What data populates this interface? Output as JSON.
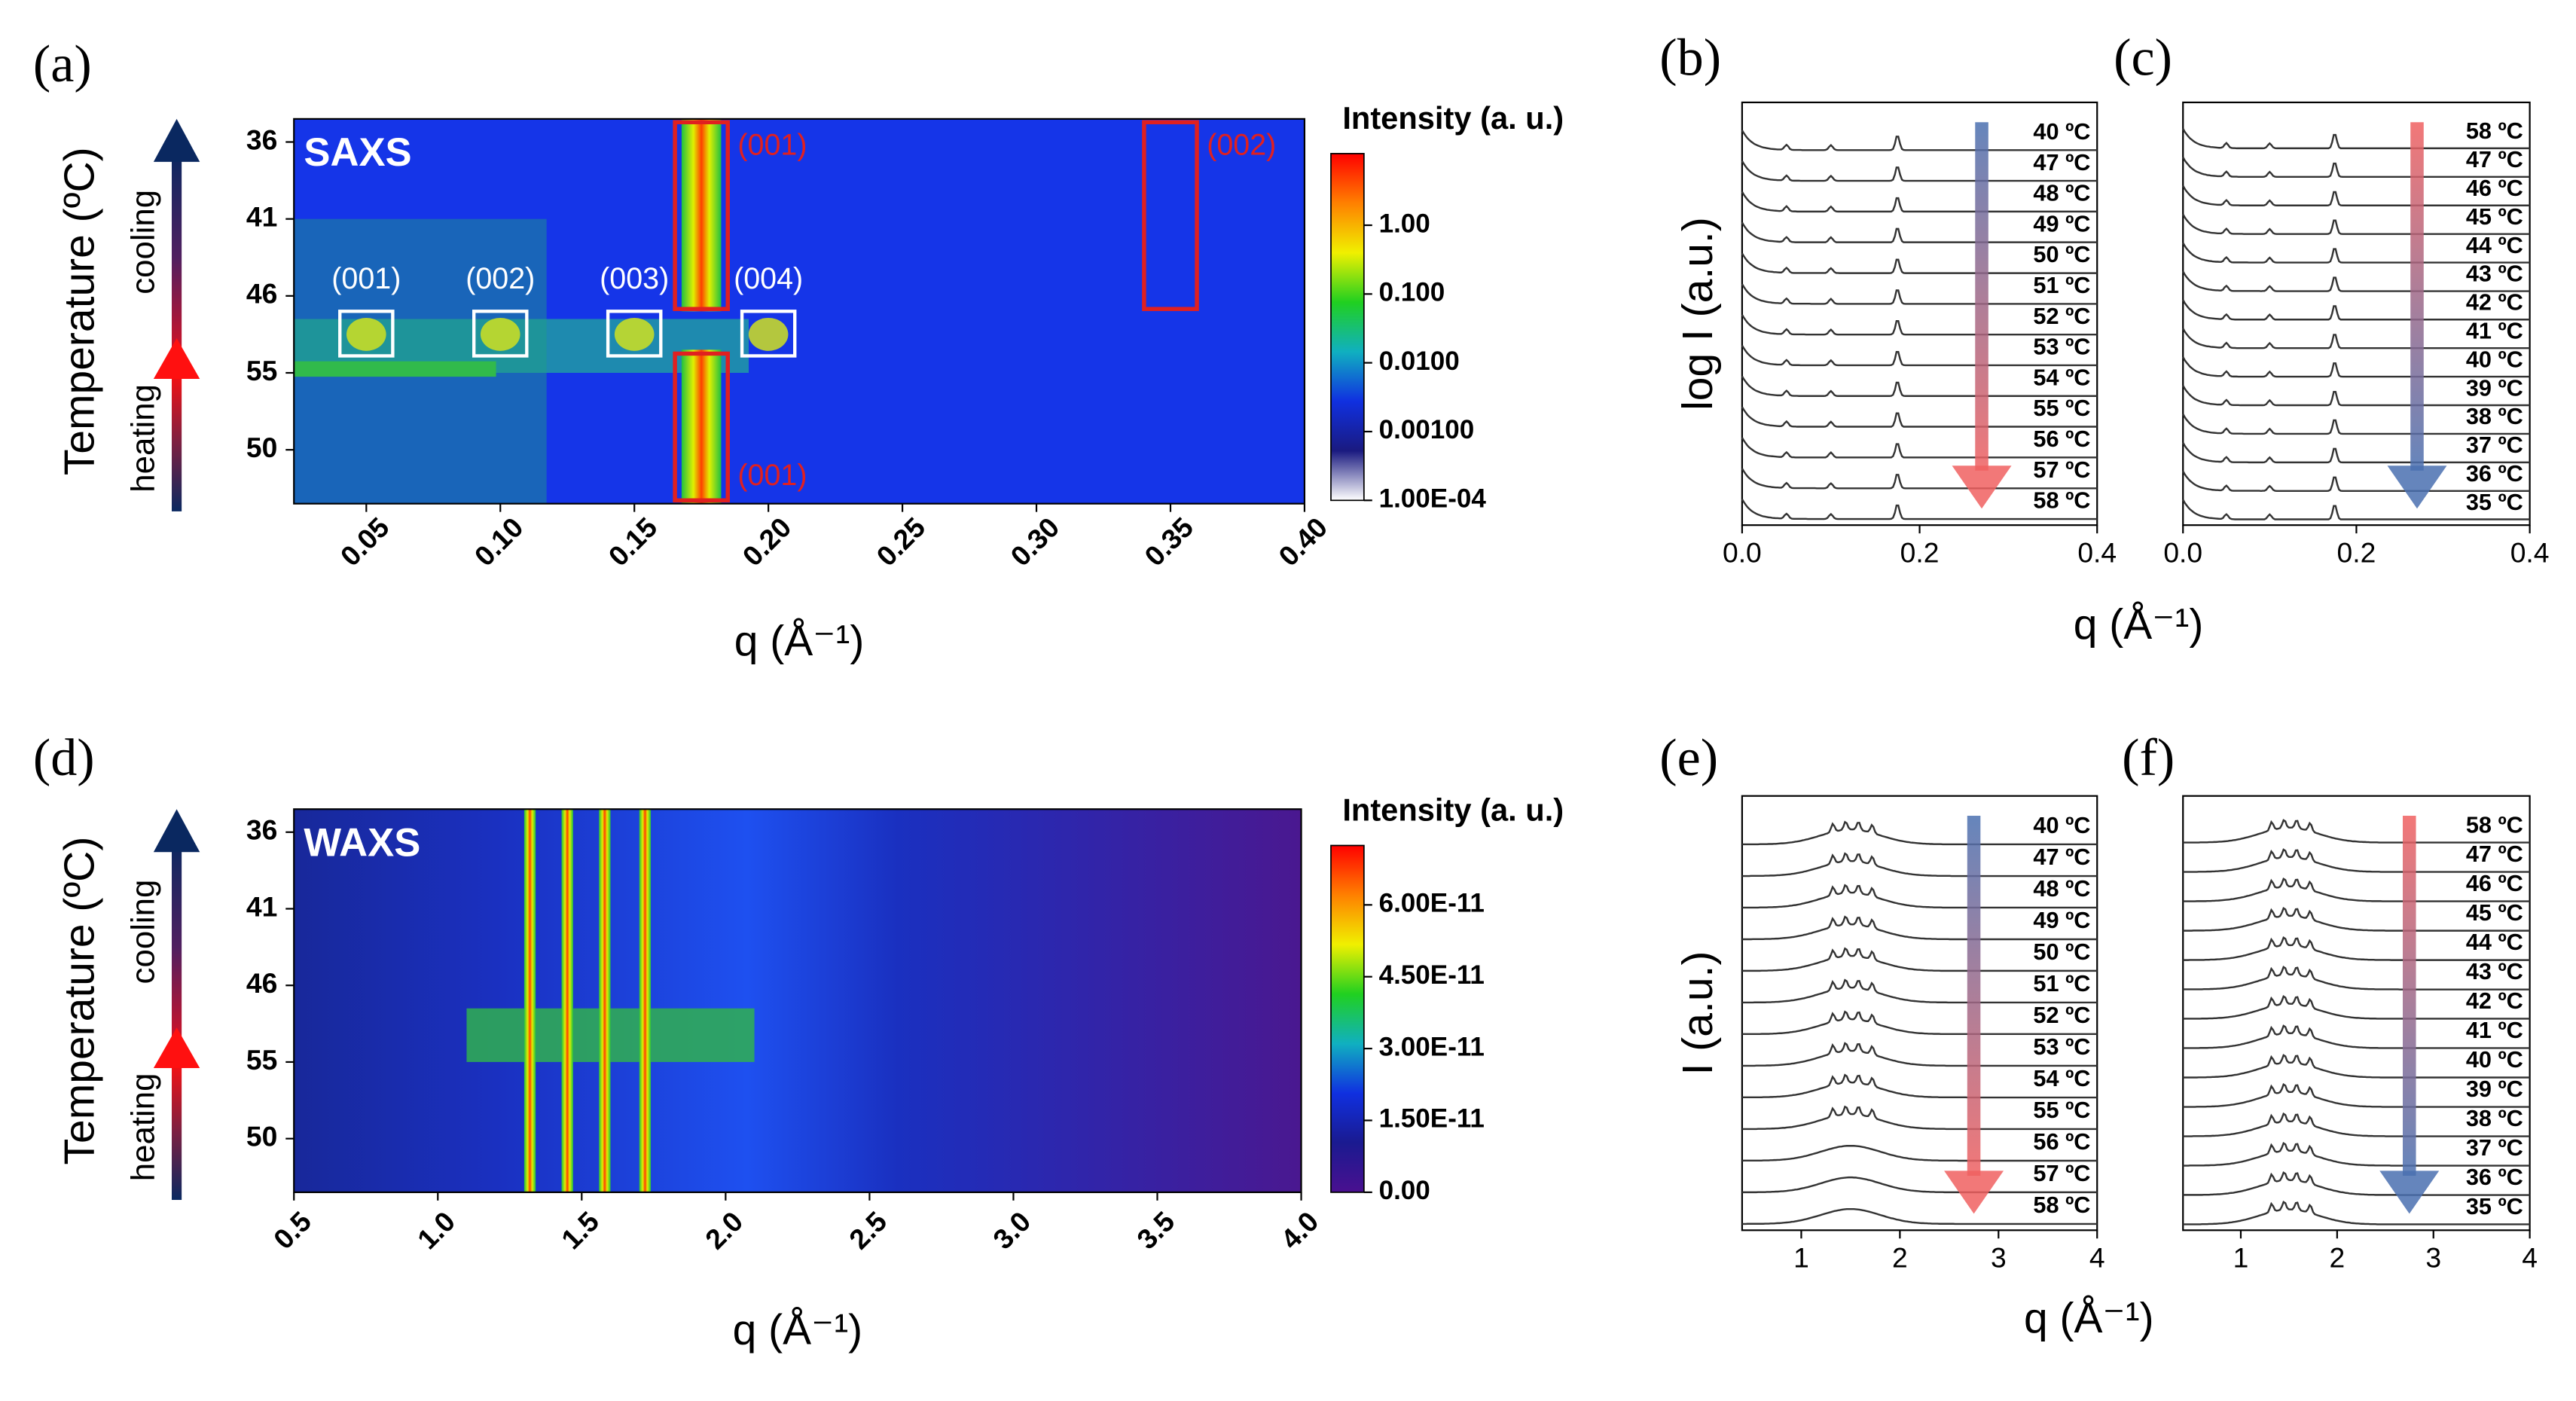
{
  "chart_data": [
    {
      "type": "heatmap",
      "panel": "(a)",
      "label": "SAXS",
      "xlabel": "q (Å⁻¹)",
      "ylabel": "Temperature (ºC)",
      "categories": [
        "36",
        "41",
        "46",
        "55",
        "50"
      ],
      "arrows": [
        "cooling",
        "heating"
      ],
      "xlim": [
        0.023,
        0.4
      ],
      "xticks": [
        0.05,
        {
          "value": 0.1,
          "label": "0.10"
        },
        0.15,
        {
          "value": 0.2,
          "label": "0.20"
        },
        0.25,
        {
          "value": 0.3,
          "label": "0.30"
        },
        0.35,
        {
          "value": 0.4,
          "label": "0.40"
        }
      ],
      "peaks": [
        0.175
      ],
      "colorbar": {
        "title": "Intensity (a. u.)",
        "log": true,
        "lim": [
          0.0001,
          11
        ],
        "colors": [
          "#ffffff",
          "#1a1a80",
          "#1030e0",
          "#10b0c0",
          "#20d020",
          "#f0f000",
          "#ff8000",
          "#ff0000"
        ],
        "ticks": [
          {
            "value": 1,
            "label": "1.00"
          },
          {
            "value": 0.1,
            "label": "0.100"
          },
          {
            "value": 0.01,
            "label": "0.0100"
          },
          {
            "value": 0.001,
            "label": "0.00100"
          },
          {
            "value": 0.0001,
            "label": "1.00E-04"
          }
        ]
      },
      "annotations": [
        {
          "text": "(001)",
          "x": 0.05,
          "color": "#ffffff",
          "box": "small"
        },
        {
          "text": "(002)",
          "x": 0.1,
          "color": "#ffffff",
          "box": "small"
        },
        {
          "text": "(003)",
          "x": 0.15,
          "color": "#ffffff",
          "box": "small"
        },
        {
          "text": "(004)",
          "x": 0.2,
          "color": "#ffffff",
          "box": "small"
        },
        {
          "text": "(001)",
          "x": 0.175,
          "color": "#e02020",
          "box": "top"
        },
        {
          "text": "(002)",
          "x": 0.35,
          "color": "#e02020",
          "box": "top"
        },
        {
          "text": "(001)",
          "x": 0.175,
          "color": "#e02020",
          "box": "bottom"
        }
      ]
    },
    {
      "type": "stacked-line",
      "panel": "(b)",
      "ylabel": "log I (a.u.)",
      "xlabel": "q (Å⁻¹)",
      "xlim": [
        0,
        0.4
      ],
      "xticks": [
        {
          "value": 0,
          "label": "0.0"
        },
        {
          "value": 0.2,
          "label": "0.2"
        },
        {
          "value": 0.4,
          "label": "0.4"
        }
      ],
      "peaks": [
        0.05,
        0.1,
        0.175
      ],
      "arrow": [
        "#4a70b0",
        "#f06060"
      ],
      "labels": [
        "40 ºC",
        "47 ºC",
        "48 ºC",
        "49 ºC",
        "50 ºC",
        "51 ºC",
        "52 ºC",
        "53 ºC",
        "54 ºC",
        "55 ºC",
        "56 ºC",
        "57 ºC",
        "58 ºC"
      ]
    },
    {
      "type": "stacked-line",
      "panel": "(c)",
      "xlim": [
        0,
        0.4
      ],
      "xticks": [
        {
          "value": 0,
          "label": "0.0"
        },
        {
          "value": 0.2,
          "label": "0.2"
        },
        {
          "value": 0.4,
          "label": "0.4"
        }
      ],
      "peaks": [
        0.05,
        0.1,
        0.175
      ],
      "arrow": [
        "#f06060",
        "#4a70b0"
      ],
      "labels": [
        "58 ºC",
        "47 ºC",
        "46 ºC",
        "45 ºC",
        "44 ºC",
        "43 ºC",
        "42 ºC",
        "41 ºC",
        "40 ºC",
        "39 ºC",
        "38 ºC",
        "37 ºC",
        "36 ºC",
        "35 ºC"
      ]
    },
    {
      "type": "heatmap",
      "panel": "(d)",
      "label": "WAXS",
      "xlabel": "q (Å⁻¹)",
      "ylabel": "Temperature (ºC)",
      "categories": [
        "36",
        "41",
        "46",
        "55",
        "50"
      ],
      "arrows": [
        "cooling",
        "heating"
      ],
      "xlim": [
        0.5,
        4.0
      ],
      "xticks": [
        0.5,
        {
          "value": 1,
          "label": "1.0"
        },
        1.5,
        {
          "value": 2,
          "label": "2.0"
        },
        2.5,
        {
          "value": 3,
          "label": "3.0"
        },
        3.5,
        {
          "value": 4,
          "label": "4.0"
        }
      ],
      "peaks": [
        1.32,
        1.45,
        1.58,
        1.72
      ],
      "colorbar": {
        "title": "Intensity (a. u.)",
        "log": false,
        "lim": [
          0,
          7.24e-11
        ],
        "colors": [
          "#4a1090",
          "#1a1a90",
          "#1030e0",
          "#10b0c0",
          "#20d020",
          "#f0f000",
          "#ff8000",
          "#ff0000"
        ],
        "ticks": [
          {
            "value": 6e-11,
            "label": "6.00E-11"
          },
          {
            "value": 4.5e-11,
            "label": "4.50E-11"
          },
          {
            "value": 3e-11,
            "label": "3.00E-11"
          },
          {
            "value": 1.5e-11,
            "label": "1.50E-11"
          },
          {
            "value": 0,
            "label": "0.00"
          }
        ]
      },
      "annotations": []
    },
    {
      "type": "stacked-line",
      "panel": "(e)",
      "ylabel": "I (a.u.)",
      "xlabel": "q (Å⁻¹)",
      "xlim": [
        0.4,
        4
      ],
      "xticks": [
        1,
        2,
        3,
        4
      ],
      "peaks": [
        1.32,
        1.45,
        1.58,
        1.72
      ],
      "arrow": [
        "#4a70b0",
        "#f06060"
      ],
      "labels": [
        "40 ºC",
        "47 ºC",
        "48 ºC",
        "49 ºC",
        "50 ºC",
        "51 ºC",
        "52 ºC",
        "53 ºC",
        "54 ºC",
        "55 ºC",
        "56 ºC",
        "57 ºC",
        "58 ºC"
      ]
    },
    {
      "type": "stacked-line",
      "panel": "(f)",
      "xlim": [
        0.4,
        4
      ],
      "xticks": [
        1,
        2,
        3,
        4
      ],
      "peaks": [
        1.32,
        1.45,
        1.58,
        1.72
      ],
      "arrow": [
        "#f06060",
        "#4a70b0"
      ],
      "labels": [
        "58 ºC",
        "47 ºC",
        "46 ºC",
        "45 ºC",
        "44 ºC",
        "43 ºC",
        "42 ºC",
        "41 ºC",
        "40 ºC",
        "39 ºC",
        "38 ºC",
        "37 ºC",
        "36 ºC",
        "35 ºC"
      ]
    }
  ]
}
